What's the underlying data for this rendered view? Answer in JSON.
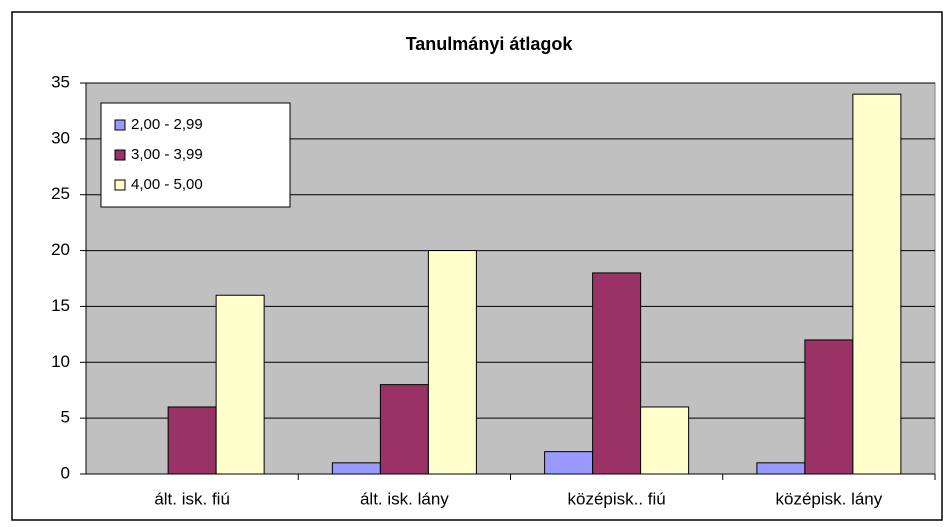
{
  "chart_data": {
    "type": "bar",
    "title": "Tanulmányi átlagok",
    "categories": [
      "ált. isk. fiú",
      "ált. isk. lány",
      "középisk.. fiú",
      "középisk. lány"
    ],
    "series": [
      {
        "name": "2,00 - 2,99",
        "color": "#9999ff",
        "values": [
          0,
          1,
          2,
          1
        ]
      },
      {
        "name": "3,00 - 3,99",
        "color": "#993366",
        "values": [
          6,
          8,
          18,
          12
        ]
      },
      {
        "name": "4,00 - 5,00",
        "color": "#ffffcc",
        "values": [
          16,
          20,
          6,
          34
        ]
      }
    ],
    "ylim": [
      0,
      35
    ],
    "yticks": [
      0,
      5,
      10,
      15,
      20,
      25,
      30,
      35
    ],
    "grid": true,
    "legend": "top-left"
  }
}
